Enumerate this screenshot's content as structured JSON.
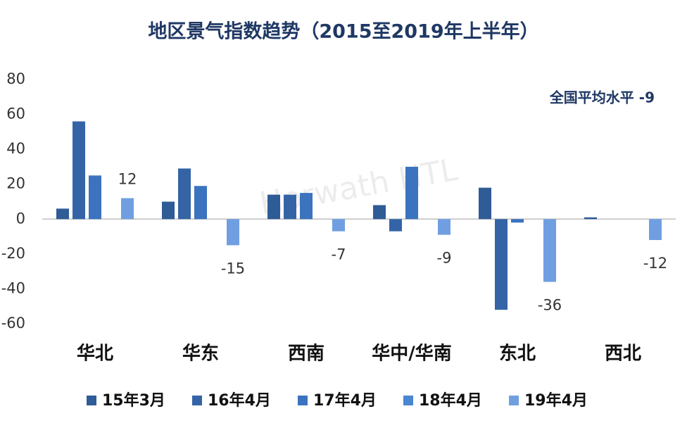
{
  "chart_data": {
    "type": "bar",
    "title": "地区景气指数趋势（2015至2019年上半年）",
    "annotation": "全国平均水平 -9",
    "watermark": "Horwath HTL",
    "categories": [
      "华北",
      "华东",
      "西南",
      "华中/华南",
      "东北",
      "西北"
    ],
    "series": [
      {
        "name": "15年3月",
        "color": "#2f5b96",
        "values": [
          6,
          10,
          14,
          8,
          18,
          1
        ]
      },
      {
        "name": "16年4月",
        "color": "#3464a6",
        "values": [
          56,
          29,
          14,
          -7,
          -52,
          null
        ]
      },
      {
        "name": "17年4月",
        "color": "#3b73bf",
        "values": [
          25,
          19,
          15,
          30,
          -2,
          null
        ]
      },
      {
        "name": "18年4月",
        "color": "#4a86d1",
        "values": [
          null,
          null,
          null,
          null,
          null,
          null
        ]
      },
      {
        "name": "19年4月",
        "color": "#6f9fe0",
        "values": [
          12,
          -15,
          -7,
          -9,
          -36,
          -12
        ],
        "show_values": true
      }
    ],
    "ylim": [
      -60,
      80
    ],
    "yticks": [
      -60,
      -40,
      -20,
      0,
      20,
      40,
      60,
      80
    ],
    "grid": false,
    "legend": "bottom"
  }
}
